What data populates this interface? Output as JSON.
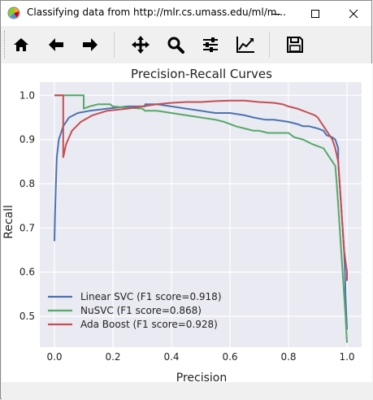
{
  "window": {
    "title": "Classifying data from http://mlr.cs.umass.edu/ml/m...",
    "app_icon": "matplotlib-icon",
    "controls": [
      "minimize-icon",
      "maximize-icon",
      "close-icon"
    ]
  },
  "toolbar": {
    "buttons": [
      {
        "name": "home",
        "icon": "home-icon"
      },
      {
        "name": "back",
        "icon": "arrow-left-icon"
      },
      {
        "name": "forward",
        "icon": "arrow-right-icon"
      },
      {
        "name": "pan",
        "icon": "move-icon"
      },
      {
        "name": "zoom",
        "icon": "magnifier-icon"
      },
      {
        "name": "configure-subplots",
        "icon": "sliders-icon"
      },
      {
        "name": "edit-axis",
        "icon": "chart-line-icon"
      },
      {
        "name": "save",
        "icon": "floppy-disk-icon"
      }
    ]
  },
  "chart_data": {
    "type": "line",
    "title": "Precision-Recall Curves",
    "xlabel": "Precision",
    "ylabel": "Recall",
    "xlim": [
      -0.05,
      1.05
    ],
    "ylim": [
      0.43,
      1.03
    ],
    "xticks": [
      0.0,
      0.2,
      0.4,
      0.6,
      0.8,
      1.0
    ],
    "xtick_labels": [
      "0.0",
      "0.2",
      "0.4",
      "0.6",
      "0.8",
      "1.0"
    ],
    "yticks": [
      0.5,
      0.6,
      0.7,
      0.8,
      0.9,
      1.0
    ],
    "ytick_labels": [
      "0.5",
      "0.6",
      "0.7",
      "0.8",
      "0.9",
      "1.0"
    ],
    "grid": true,
    "legend": "lower-left",
    "background": "#eaeaf2",
    "series": [
      {
        "name": "Linear SVC (F1 score=0.918)",
        "color": "#4c72b0",
        "points": [
          [
            0.0,
            0.67
          ],
          [
            0.002,
            0.73
          ],
          [
            0.005,
            0.8
          ],
          [
            0.008,
            0.86
          ],
          [
            0.015,
            0.9
          ],
          [
            0.03,
            0.93
          ],
          [
            0.05,
            0.95
          ],
          [
            0.08,
            0.96
          ],
          [
            0.12,
            0.965
          ],
          [
            0.18,
            0.97
          ],
          [
            0.25,
            0.975
          ],
          [
            0.3,
            0.975
          ],
          [
            0.31,
            0.975
          ],
          [
            0.31,
            0.98
          ],
          [
            0.35,
            0.98
          ],
          [
            0.4,
            0.975
          ],
          [
            0.45,
            0.97
          ],
          [
            0.5,
            0.965
          ],
          [
            0.55,
            0.96
          ],
          [
            0.6,
            0.96
          ],
          [
            0.65,
            0.955
          ],
          [
            0.68,
            0.95
          ],
          [
            0.72,
            0.945
          ],
          [
            0.75,
            0.945
          ],
          [
            0.8,
            0.94
          ],
          [
            0.83,
            0.935
          ],
          [
            0.85,
            0.93
          ],
          [
            0.87,
            0.93
          ],
          [
            0.9,
            0.925
          ],
          [
            0.92,
            0.92
          ],
          [
            0.93,
            0.91
          ],
          [
            0.95,
            0.905
          ],
          [
            0.96,
            0.9
          ],
          [
            0.97,
            0.88
          ],
          [
            0.97,
            0.85
          ],
          [
            0.975,
            0.8
          ],
          [
            0.98,
            0.75
          ],
          [
            0.985,
            0.7
          ],
          [
            0.99,
            0.65
          ],
          [
            0.993,
            0.6
          ],
          [
            0.995,
            0.55
          ],
          [
            0.998,
            0.5
          ],
          [
            1.0,
            0.47
          ]
        ]
      },
      {
        "name": "NuSVC (F1 score=0.868)",
        "color": "#55a868",
        "points": [
          [
            0.0,
            1.0
          ],
          [
            0.1,
            1.0
          ],
          [
            0.1,
            0.97
          ],
          [
            0.12,
            0.975
          ],
          [
            0.15,
            0.98
          ],
          [
            0.19,
            0.98
          ],
          [
            0.2,
            0.975
          ],
          [
            0.25,
            0.972
          ],
          [
            0.3,
            0.97
          ],
          [
            0.31,
            0.965
          ],
          [
            0.35,
            0.965
          ],
          [
            0.4,
            0.96
          ],
          [
            0.45,
            0.955
          ],
          [
            0.5,
            0.95
          ],
          [
            0.55,
            0.945
          ],
          [
            0.58,
            0.94
          ],
          [
            0.6,
            0.935
          ],
          [
            0.62,
            0.93
          ],
          [
            0.65,
            0.925
          ],
          [
            0.68,
            0.92
          ],
          [
            0.7,
            0.92
          ],
          [
            0.73,
            0.915
          ],
          [
            0.76,
            0.915
          ],
          [
            0.8,
            0.915
          ],
          [
            0.82,
            0.905
          ],
          [
            0.85,
            0.9
          ],
          [
            0.88,
            0.89
          ],
          [
            0.9,
            0.885
          ],
          [
            0.92,
            0.88
          ],
          [
            0.93,
            0.87
          ],
          [
            0.94,
            0.86
          ],
          [
            0.95,
            0.85
          ],
          [
            0.96,
            0.84
          ],
          [
            0.965,
            0.8
          ],
          [
            0.97,
            0.75
          ],
          [
            0.975,
            0.7
          ],
          [
            0.98,
            0.65
          ],
          [
            0.985,
            0.6
          ],
          [
            0.99,
            0.55
          ],
          [
            0.995,
            0.5
          ],
          [
            1.0,
            0.44
          ]
        ]
      },
      {
        "name": "Ada Boost (F1 score=0.928)",
        "color": "#c44e52",
        "points": [
          [
            0.0,
            1.0
          ],
          [
            0.03,
            1.0
          ],
          [
            0.03,
            0.86
          ],
          [
            0.04,
            0.89
          ],
          [
            0.06,
            0.92
          ],
          [
            0.09,
            0.94
          ],
          [
            0.13,
            0.955
          ],
          [
            0.18,
            0.965
          ],
          [
            0.25,
            0.97
          ],
          [
            0.3,
            0.975
          ],
          [
            0.35,
            0.98
          ],
          [
            0.4,
            0.983
          ],
          [
            0.45,
            0.985
          ],
          [
            0.5,
            0.985
          ],
          [
            0.55,
            0.987
          ],
          [
            0.6,
            0.988
          ],
          [
            0.65,
            0.988
          ],
          [
            0.7,
            0.985
          ],
          [
            0.75,
            0.983
          ],
          [
            0.78,
            0.98
          ],
          [
            0.8,
            0.975
          ],
          [
            0.83,
            0.97
          ],
          [
            0.85,
            0.965
          ],
          [
            0.87,
            0.96
          ],
          [
            0.89,
            0.955
          ],
          [
            0.9,
            0.95
          ],
          [
            0.91,
            0.94
          ],
          [
            0.92,
            0.93
          ],
          [
            0.93,
            0.92
          ],
          [
            0.94,
            0.91
          ],
          [
            0.95,
            0.9
          ],
          [
            0.96,
            0.88
          ],
          [
            0.97,
            0.85
          ],
          [
            0.975,
            0.8
          ],
          [
            0.98,
            0.75
          ],
          [
            0.985,
            0.7
          ],
          [
            0.99,
            0.65
          ],
          [
            1.0,
            0.6
          ],
          [
            1.0,
            0.58
          ]
        ]
      }
    ]
  }
}
